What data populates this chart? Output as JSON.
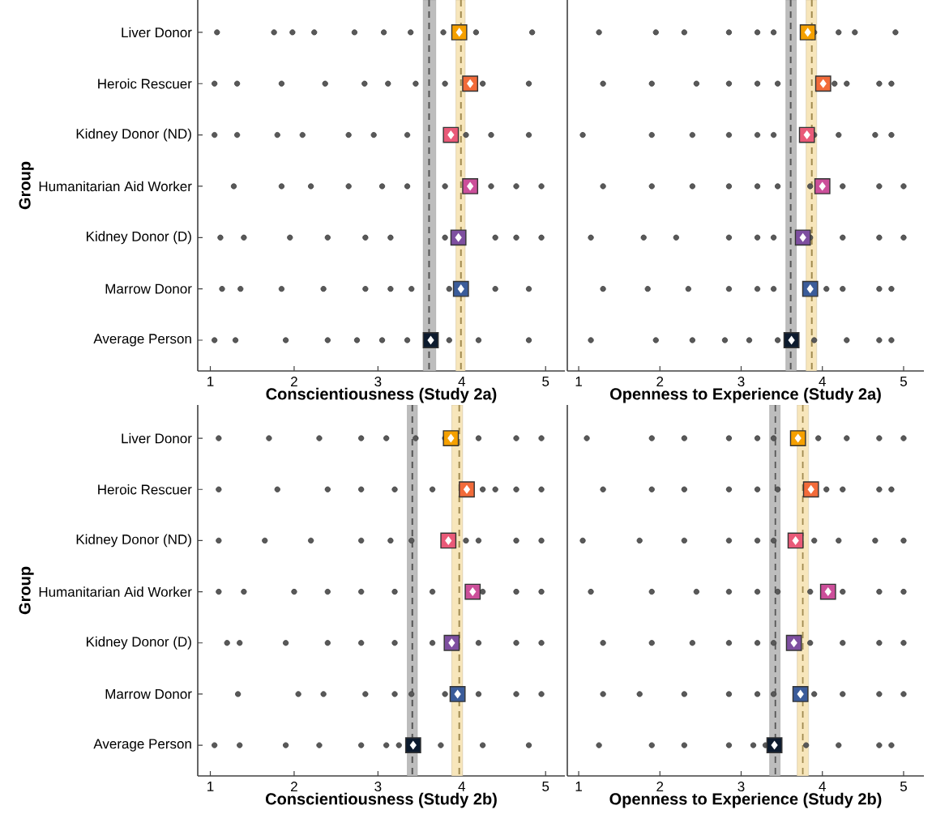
{
  "chart_data": [
    {
      "type": "scatter",
      "orientation": "horizontal",
      "xlabel": "Conscientiousness (Study 2a)",
      "ylabel": "Group",
      "categories": [
        "Liver Donor",
        "Heroic Rescuer",
        "Kidney Donor (ND)",
        "Humanitarian Aid Worker",
        "Kidney Donor (D)",
        "Marrow Donor",
        "Average Person"
      ],
      "xlim": [
        0.85,
        5.23
      ],
      "xticks": [
        1,
        2,
        3,
        4,
        5
      ],
      "bands": [
        {
          "axis": "x",
          "from": 3.54,
          "to": 3.69,
          "color": "#bdbdbd"
        },
        {
          "axis": "x",
          "from": 3.93,
          "to": 4.04,
          "color": "#f7e6bb"
        }
      ],
      "ref_lines": [
        {
          "axis": "x",
          "value": 3.61,
          "color": "#555555",
          "line_style": "dashed"
        },
        {
          "axis": "x",
          "value": 3.99,
          "color": "#a08a50",
          "line_style": "dashed"
        }
      ],
      "series": [
        {
          "marker": "circle",
          "color": "#3c3c3c",
          "x": [
            "Liver Donor",
            "Liver Donor",
            "Liver Donor",
            "Liver Donor",
            "Liver Donor",
            "Liver Donor",
            "Liver Donor",
            "Liver Donor",
            "Liver Donor",
            "Liver Donor",
            "Heroic Rescuer",
            "Heroic Rescuer",
            "Heroic Rescuer",
            "Heroic Rescuer",
            "Heroic Rescuer",
            "Heroic Rescuer",
            "Heroic Rescuer",
            "Heroic Rescuer",
            "Heroic Rescuer",
            "Heroic Rescuer",
            "Kidney Donor (ND)",
            "Kidney Donor (ND)",
            "Kidney Donor (ND)",
            "Kidney Donor (ND)",
            "Kidney Donor (ND)",
            "Kidney Donor (ND)",
            "Kidney Donor (ND)",
            "Kidney Donor (ND)",
            "Kidney Donor (ND)",
            "Kidney Donor (ND)",
            "Humanitarian Aid Worker",
            "Humanitarian Aid Worker",
            "Humanitarian Aid Worker",
            "Humanitarian Aid Worker",
            "Humanitarian Aid Worker",
            "Humanitarian Aid Worker",
            "Humanitarian Aid Worker",
            "Humanitarian Aid Worker",
            "Humanitarian Aid Worker",
            "Humanitarian Aid Worker",
            "Kidney Donor (D)",
            "Kidney Donor (D)",
            "Kidney Donor (D)",
            "Kidney Donor (D)",
            "Kidney Donor (D)",
            "Kidney Donor (D)",
            "Kidney Donor (D)",
            "Kidney Donor (D)",
            "Kidney Donor (D)",
            "Kidney Donor (D)",
            "Marrow Donor",
            "Marrow Donor",
            "Marrow Donor",
            "Marrow Donor",
            "Marrow Donor",
            "Marrow Donor",
            "Marrow Donor",
            "Marrow Donor",
            "Marrow Donor",
            "Marrow Donor",
            "Average Person",
            "Average Person",
            "Average Person",
            "Average Person",
            "Average Person",
            "Average Person",
            "Average Person",
            "Average Person",
            "Average Person",
            "Average Person"
          ],
          "values": [
            1.08,
            1.76,
            1.98,
            2.24,
            2.72,
            3.07,
            3.39,
            3.78,
            4.17,
            4.84,
            1.05,
            1.32,
            1.85,
            2.37,
            2.84,
            3.12,
            3.45,
            3.8,
            4.25,
            4.8,
            1.05,
            1.32,
            1.8,
            2.1,
            2.65,
            2.95,
            3.35,
            4.05,
            4.35,
            4.8,
            1.28,
            1.85,
            2.2,
            2.65,
            3.05,
            3.35,
            3.8,
            4.35,
            4.65,
            4.95,
            1.12,
            1.4,
            1.95,
            2.4,
            2.85,
            3.15,
            3.8,
            4.4,
            4.65,
            4.95,
            1.14,
            1.36,
            1.85,
            2.35,
            2.85,
            3.15,
            3.4,
            3.85,
            4.4,
            4.8,
            1.05,
            1.3,
            1.9,
            2.4,
            2.75,
            3.05,
            3.35,
            3.85,
            4.2,
            4.8
          ]
        },
        {
          "marker": "square",
          "colors": [
            "#f5a000",
            "#f26b3a",
            "#e95a78",
            "#cc4f9a",
            "#7e4fa0",
            "#3b5c9a",
            "#0d1b2e"
          ],
          "values": [
            3.97,
            4.1,
            3.87,
            4.1,
            3.96,
            3.99,
            3.63
          ]
        }
      ]
    },
    {
      "type": "scatter",
      "orientation": "horizontal",
      "xlabel": "Openness to Experience (Study 2a)",
      "categories": [
        "Liver Donor",
        "Heroic Rescuer",
        "Kidney Donor (ND)",
        "Humanitarian Aid Worker",
        "Kidney Donor (D)",
        "Marrow Donor",
        "Average Person"
      ],
      "xlim": [
        0.86,
        5.25
      ],
      "xticks": [
        1,
        2,
        3,
        4,
        5
      ],
      "tick_labels": "x",
      "bands": [
        {
          "axis": "x",
          "from": 3.55,
          "to": 3.68,
          "color": "#bdbdbd"
        },
        {
          "axis": "x",
          "from": 3.8,
          "to": 3.93,
          "color": "#f7e6bb"
        }
      ],
      "ref_lines": [
        {
          "axis": "x",
          "value": 3.61,
          "color": "#555555",
          "line_style": "dashed"
        },
        {
          "axis": "x",
          "value": 3.87,
          "color": "#a08a50",
          "line_style": "dashed"
        }
      ],
      "series": [
        {
          "marker": "circle",
          "color": "#3c3c3c",
          "x": [
            "Liver Donor",
            "Liver Donor",
            "Liver Donor",
            "Liver Donor",
            "Liver Donor",
            "Liver Donor",
            "Liver Donor",
            "Liver Donor",
            "Liver Donor",
            "Liver Donor",
            "Heroic Rescuer",
            "Heroic Rescuer",
            "Heroic Rescuer",
            "Heroic Rescuer",
            "Heroic Rescuer",
            "Heroic Rescuer",
            "Heroic Rescuer",
            "Heroic Rescuer",
            "Heroic Rescuer",
            "Heroic Rescuer",
            "Kidney Donor (ND)",
            "Kidney Donor (ND)",
            "Kidney Donor (ND)",
            "Kidney Donor (ND)",
            "Kidney Donor (ND)",
            "Kidney Donor (ND)",
            "Kidney Donor (ND)",
            "Kidney Donor (ND)",
            "Kidney Donor (ND)",
            "Kidney Donor (ND)",
            "Humanitarian Aid Worker",
            "Humanitarian Aid Worker",
            "Humanitarian Aid Worker",
            "Humanitarian Aid Worker",
            "Humanitarian Aid Worker",
            "Humanitarian Aid Worker",
            "Humanitarian Aid Worker",
            "Humanitarian Aid Worker",
            "Humanitarian Aid Worker",
            "Humanitarian Aid Worker",
            "Kidney Donor (D)",
            "Kidney Donor (D)",
            "Kidney Donor (D)",
            "Kidney Donor (D)",
            "Kidney Donor (D)",
            "Kidney Donor (D)",
            "Kidney Donor (D)",
            "Kidney Donor (D)",
            "Kidney Donor (D)",
            "Kidney Donor (D)",
            "Marrow Donor",
            "Marrow Donor",
            "Marrow Donor",
            "Marrow Donor",
            "Marrow Donor",
            "Marrow Donor",
            "Marrow Donor",
            "Marrow Donor",
            "Marrow Donor",
            "Marrow Donor",
            "Average Person",
            "Average Person",
            "Average Person",
            "Average Person",
            "Average Person",
            "Average Person",
            "Average Person",
            "Average Person",
            "Average Person",
            "Average Person"
          ],
          "values": [
            1.25,
            1.95,
            2.3,
            2.85,
            3.2,
            3.4,
            3.9,
            4.2,
            4.4,
            4.9,
            1.3,
            1.9,
            2.45,
            2.85,
            3.2,
            3.45,
            4.15,
            4.3,
            4.7,
            4.85,
            1.05,
            1.9,
            2.4,
            2.85,
            3.2,
            3.4,
            3.9,
            4.2,
            4.65,
            4.85,
            1.3,
            1.9,
            2.4,
            2.85,
            3.2,
            3.45,
            3.85,
            4.25,
            4.7,
            5.0,
            1.15,
            1.8,
            2.2,
            2.85,
            3.2,
            3.4,
            3.85,
            4.25,
            4.7,
            5.0,
            1.3,
            1.85,
            2.35,
            2.85,
            3.2,
            3.4,
            4.05,
            4.25,
            4.7,
            4.85,
            1.15,
            1.95,
            2.4,
            2.8,
            3.1,
            3.45,
            3.9,
            4.3,
            4.7,
            4.85
          ]
        },
        {
          "marker": "square",
          "colors": [
            "#f5a000",
            "#f26b3a",
            "#e95a78",
            "#cc4f9a",
            "#7e4fa0",
            "#3b5c9a",
            "#0d1b2e"
          ],
          "values": [
            3.82,
            4.01,
            3.81,
            4.0,
            3.76,
            3.85,
            3.62
          ]
        }
      ]
    },
    {
      "type": "scatter",
      "orientation": "horizontal",
      "xlabel": "Conscientiousness (Study 2b)",
      "ylabel": "Group",
      "categories": [
        "Liver Donor",
        "Heroic Rescuer",
        "Kidney Donor (ND)",
        "Humanitarian Aid Worker",
        "Kidney Donor (D)",
        "Marrow Donor",
        "Average Person"
      ],
      "xlim": [
        0.85,
        5.23
      ],
      "xticks": [
        1,
        2,
        3,
        4,
        5
      ],
      "bands": [
        {
          "axis": "x",
          "from": 3.35,
          "to": 3.47,
          "color": "#bdbdbd"
        },
        {
          "axis": "x",
          "from": 3.88,
          "to": 4.01,
          "color": "#f7e6bb"
        }
      ],
      "ref_lines": [
        {
          "axis": "x",
          "value": 3.41,
          "color": "#555555",
          "line_style": "dashed"
        },
        {
          "axis": "x",
          "value": 3.97,
          "color": "#a08a50",
          "line_style": "dashed"
        }
      ],
      "series": [
        {
          "marker": "circle",
          "color": "#3c3c3c",
          "x": [
            "Liver Donor",
            "Liver Donor",
            "Liver Donor",
            "Liver Donor",
            "Liver Donor",
            "Liver Donor",
            "Liver Donor",
            "Liver Donor",
            "Liver Donor",
            "Liver Donor",
            "Heroic Rescuer",
            "Heroic Rescuer",
            "Heroic Rescuer",
            "Heroic Rescuer",
            "Heroic Rescuer",
            "Heroic Rescuer",
            "Heroic Rescuer",
            "Heroic Rescuer",
            "Heroic Rescuer",
            "Heroic Rescuer",
            "Kidney Donor (ND)",
            "Kidney Donor (ND)",
            "Kidney Donor (ND)",
            "Kidney Donor (ND)",
            "Kidney Donor (ND)",
            "Kidney Donor (ND)",
            "Kidney Donor (ND)",
            "Kidney Donor (ND)",
            "Kidney Donor (ND)",
            "Kidney Donor (ND)",
            "Humanitarian Aid Worker",
            "Humanitarian Aid Worker",
            "Humanitarian Aid Worker",
            "Humanitarian Aid Worker",
            "Humanitarian Aid Worker",
            "Humanitarian Aid Worker",
            "Humanitarian Aid Worker",
            "Humanitarian Aid Worker",
            "Humanitarian Aid Worker",
            "Humanitarian Aid Worker",
            "Kidney Donor (D)",
            "Kidney Donor (D)",
            "Kidney Donor (D)",
            "Kidney Donor (D)",
            "Kidney Donor (D)",
            "Kidney Donor (D)",
            "Kidney Donor (D)",
            "Kidney Donor (D)",
            "Kidney Donor (D)",
            "Kidney Donor (D)",
            "Marrow Donor",
            "Marrow Donor",
            "Marrow Donor",
            "Marrow Donor",
            "Marrow Donor",
            "Marrow Donor",
            "Marrow Donor",
            "Marrow Donor",
            "Marrow Donor",
            "Marrow Donor",
            "Average Person",
            "Average Person",
            "Average Person",
            "Average Person",
            "Average Person",
            "Average Person",
            "Average Person",
            "Average Person",
            "Average Person",
            "Average Person"
          ],
          "values": [
            1.1,
            1.7,
            2.3,
            2.8,
            3.1,
            3.45,
            3.8,
            4.2,
            4.65,
            4.95,
            1.1,
            1.8,
            2.4,
            2.8,
            3.2,
            3.65,
            4.25,
            4.4,
            4.65,
            4.95,
            1.1,
            1.65,
            2.2,
            2.8,
            3.15,
            3.4,
            4.05,
            4.2,
            4.65,
            4.95,
            1.1,
            1.4,
            2.0,
            2.4,
            2.8,
            3.2,
            3.65,
            4.25,
            4.65,
            4.95,
            1.2,
            1.35,
            1.9,
            2.4,
            2.8,
            3.2,
            3.65,
            4.2,
            4.65,
            4.95,
            1.33,
            2.05,
            2.35,
            2.85,
            3.2,
            3.4,
            3.8,
            4.2,
            4.65,
            4.95,
            1.05,
            1.35,
            1.9,
            2.3,
            2.8,
            3.1,
            3.25,
            3.75,
            4.25,
            4.8
          ]
        },
        {
          "marker": "square",
          "colors": [
            "#f5a000",
            "#f26b3a",
            "#e95a78",
            "#cc4f9a",
            "#7e4fa0",
            "#3b5c9a",
            "#0d1b2e"
          ],
          "values": [
            3.87,
            4.06,
            3.84,
            4.13,
            3.88,
            3.95,
            3.42
          ]
        }
      ]
    },
    {
      "type": "scatter",
      "orientation": "horizontal",
      "xlabel": "Openness to Experience (Study 2b)",
      "categories": [
        "Liver Donor",
        "Heroic Rescuer",
        "Kidney Donor (ND)",
        "Humanitarian Aid Worker",
        "Kidney Donor (D)",
        "Marrow Donor",
        "Average Person"
      ],
      "xlim": [
        0.86,
        5.25
      ],
      "xticks": [
        1,
        2,
        3,
        4,
        5
      ],
      "tick_labels": "x",
      "bands": [
        {
          "axis": "x",
          "from": 3.35,
          "to": 3.48,
          "color": "#bdbdbd"
        },
        {
          "axis": "x",
          "from": 3.69,
          "to": 3.83,
          "color": "#f7e6bb"
        }
      ],
      "ref_lines": [
        {
          "axis": "x",
          "value": 3.42,
          "color": "#555555",
          "line_style": "dashed"
        },
        {
          "axis": "x",
          "value": 3.76,
          "color": "#a08a50",
          "line_style": "dashed"
        }
      ],
      "series": [
        {
          "marker": "circle",
          "color": "#3c3c3c",
          "x": [
            "Liver Donor",
            "Liver Donor",
            "Liver Donor",
            "Liver Donor",
            "Liver Donor",
            "Liver Donor",
            "Liver Donor",
            "Liver Donor",
            "Liver Donor",
            "Liver Donor",
            "Heroic Rescuer",
            "Heroic Rescuer",
            "Heroic Rescuer",
            "Heroic Rescuer",
            "Heroic Rescuer",
            "Heroic Rescuer",
            "Heroic Rescuer",
            "Heroic Rescuer",
            "Heroic Rescuer",
            "Heroic Rescuer",
            "Kidney Donor (ND)",
            "Kidney Donor (ND)",
            "Kidney Donor (ND)",
            "Kidney Donor (ND)",
            "Kidney Donor (ND)",
            "Kidney Donor (ND)",
            "Kidney Donor (ND)",
            "Kidney Donor (ND)",
            "Kidney Donor (ND)",
            "Kidney Donor (ND)",
            "Humanitarian Aid Worker",
            "Humanitarian Aid Worker",
            "Humanitarian Aid Worker",
            "Humanitarian Aid Worker",
            "Humanitarian Aid Worker",
            "Humanitarian Aid Worker",
            "Humanitarian Aid Worker",
            "Humanitarian Aid Worker",
            "Humanitarian Aid Worker",
            "Humanitarian Aid Worker",
            "Kidney Donor (D)",
            "Kidney Donor (D)",
            "Kidney Donor (D)",
            "Kidney Donor (D)",
            "Kidney Donor (D)",
            "Kidney Donor (D)",
            "Kidney Donor (D)",
            "Kidney Donor (D)",
            "Kidney Donor (D)",
            "Kidney Donor (D)",
            "Marrow Donor",
            "Marrow Donor",
            "Marrow Donor",
            "Marrow Donor",
            "Marrow Donor",
            "Marrow Donor",
            "Marrow Donor",
            "Marrow Donor",
            "Marrow Donor",
            "Marrow Donor",
            "Average Person",
            "Average Person",
            "Average Person",
            "Average Person",
            "Average Person",
            "Average Person",
            "Average Person",
            "Average Person",
            "Average Person",
            "Average Person"
          ],
          "values": [
            1.1,
            1.9,
            2.3,
            2.85,
            3.2,
            3.4,
            3.95,
            4.3,
            4.7,
            5.0,
            1.3,
            1.9,
            2.3,
            2.85,
            3.2,
            3.45,
            4.05,
            4.25,
            4.7,
            4.85,
            1.05,
            1.75,
            2.3,
            2.85,
            3.2,
            3.4,
            3.9,
            4.2,
            4.65,
            5.0,
            1.15,
            1.9,
            2.45,
            2.85,
            3.2,
            3.45,
            3.85,
            4.25,
            4.7,
            5.0,
            1.3,
            1.9,
            2.4,
            2.85,
            3.2,
            3.4,
            3.85,
            4.25,
            4.7,
            5.0,
            1.3,
            1.75,
            2.3,
            2.85,
            3.2,
            3.4,
            3.9,
            4.25,
            4.7,
            5.0,
            1.25,
            1.9,
            2.3,
            2.85,
            3.15,
            3.3,
            3.8,
            4.2,
            4.7,
            4.85
          ]
        },
        {
          "marker": "square",
          "colors": [
            "#f5a000",
            "#f26b3a",
            "#e95a78",
            "#cc4f9a",
            "#7e4fa0",
            "#3b5c9a",
            "#0d1b2e"
          ],
          "values": [
            3.7,
            3.86,
            3.67,
            4.07,
            3.65,
            3.73,
            3.41
          ]
        }
      ]
    }
  ]
}
